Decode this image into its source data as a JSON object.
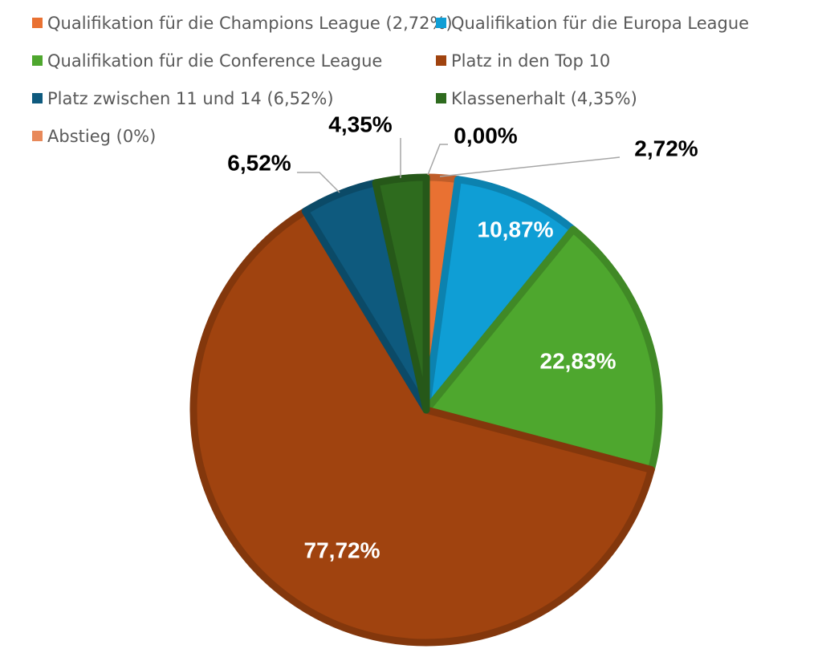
{
  "chart_data": {
    "type": "pie",
    "legend_position": "top",
    "slices": [
      {
        "legend": "Qualifikation für die Champions League (2,72%)",
        "value": 2.72,
        "label": "2,72%",
        "color": "#E97132",
        "label_color": "#000000"
      },
      {
        "legend": "Qualifikation für die Europa League",
        "value": 10.87,
        "label": "10,87%",
        "color": "#0F9ED5",
        "label_color": "#ffffff"
      },
      {
        "legend": "Qualifikation für die Conference League",
        "value": 22.83,
        "label": "22,83%",
        "color": "#4EA72E",
        "label_color": "#ffffff"
      },
      {
        "legend": "Platz in den Top 10",
        "value": 77.72,
        "label": "77,72%",
        "color": "#A0430F",
        "label_color": "#ffffff"
      },
      {
        "legend": "Platz zwischen 11 und 14 (6,52%)",
        "value": 6.52,
        "label": "6,52%",
        "color": "#0E5A7E",
        "label_color": "#000000"
      },
      {
        "legend": "Klassenerhalt (4,35%)",
        "value": 4.35,
        "label": "4,35%",
        "color": "#2E6B1E",
        "label_color": "#000000"
      },
      {
        "legend": "Abstieg (0%)",
        "value": 0.0,
        "label": "0,00%",
        "color": "#E8895A",
        "label_color": "#000000"
      }
    ]
  }
}
